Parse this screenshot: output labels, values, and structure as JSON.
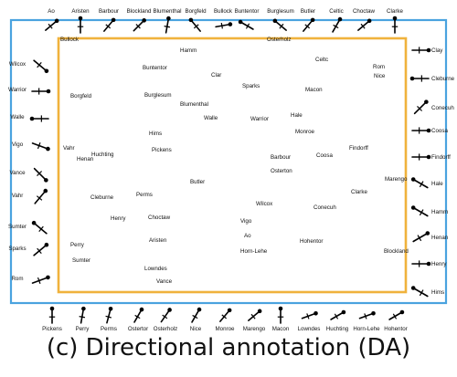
{
  "caption": "(c) Directional annotation (DA)",
  "colors": {
    "outer_frame": "#4aa3df",
    "inner_frame": "#f0b23c",
    "marker": "#000000",
    "text": "#111111"
  },
  "inner_labels": [
    "Bullock",
    "Osterholz",
    "Hamm",
    "Celtc",
    "Buntentor",
    "Rom",
    "Clar",
    "Nice",
    "Sparks",
    "Macon",
    "Borgfeld",
    "Burglesum",
    "Blumenthal",
    "Hale",
    "Walle",
    "Warrior",
    "Monroe",
    "Hims",
    "Vahr",
    "Pickens",
    "Findorff",
    "Huchting",
    "Henan",
    "Barbour",
    "Coosa",
    "Osterton",
    "Marengo",
    "Butler",
    "Clarke",
    "Cleburne",
    "Perms",
    "Wilcox",
    "Conecuh",
    "Henry",
    "Choctaw",
    "Vigo",
    "Ao",
    "Perry",
    "Aristen",
    "Hohentor",
    "Horn-Lehe",
    "Blockland",
    "Sumter",
    "Lowndes",
    "Vance"
  ],
  "top_labels": [
    "Ao",
    "Aristen",
    "Barbour",
    "Blockland",
    "Blumenthal",
    "Borgfeld",
    "Bullock",
    "Buntentor",
    "Burglesum",
    "Butler",
    "Celtic",
    "Choctaw",
    "Clarke"
  ],
  "bottom_labels": [
    "Pickens",
    "Perry",
    "Perms",
    "Ostertor",
    "Osterholz",
    "Nice",
    "Monroe",
    "Marengo",
    "Macon",
    "Lowndes",
    "Huchting",
    "Horn-Lehe",
    "Hohentor"
  ],
  "left_labels": [
    "Wilcox",
    "Warrior",
    "Walle",
    "Vigo",
    "Vance",
    "Vahr",
    "Sumter",
    "Sparks",
    "Rom"
  ],
  "right_labels": [
    "Clay",
    "Cleburne",
    "Conecuh",
    "Coosa",
    "Findorff",
    "Hale",
    "Hamm",
    "Henan",
    "Henry",
    "Hims"
  ]
}
